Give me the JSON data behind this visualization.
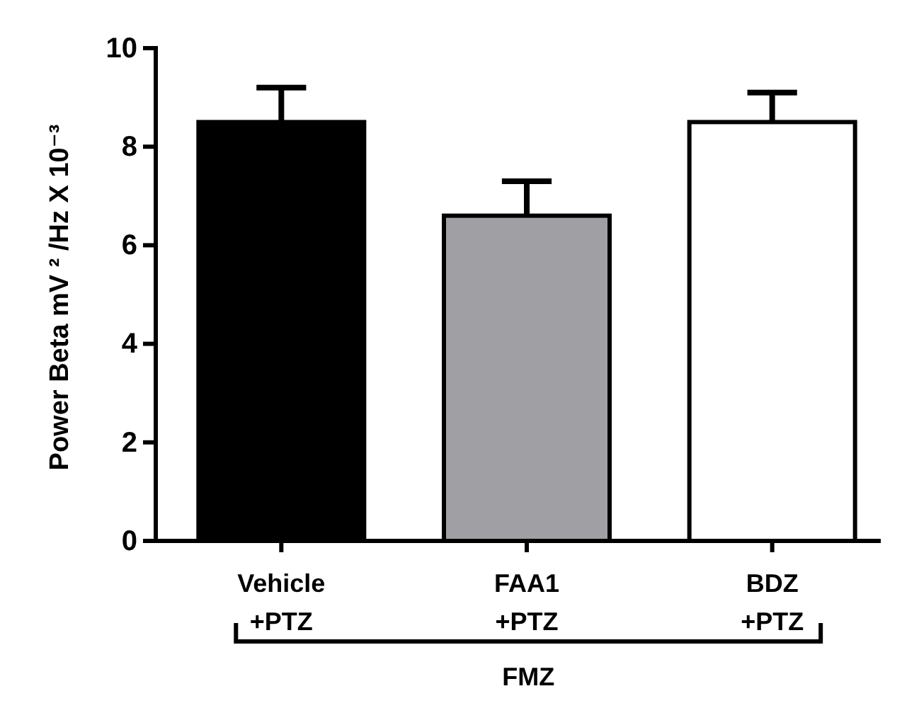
{
  "chart_data": {
    "type": "bar",
    "ylabel": "Power Beta mV ² /Hz X 10⁻³",
    "categories": [
      "Vehicle +PTZ",
      "FAA1 +PTZ",
      "BDZ +PTZ"
    ],
    "values": [
      8.5,
      6.6,
      8.5
    ],
    "colors": [
      "#000000",
      "#a0a0a4",
      "#ffffff"
    ],
    "errors": [
      [
        8.5,
        9.2
      ],
      [
        6.6,
        7.3
      ],
      [
        8.5,
        9.1
      ]
    ],
    "ylim": [
      0,
      10
    ],
    "yticks": [
      0,
      2,
      4,
      6,
      8,
      10
    ],
    "annotations": [
      "FMZ"
    ]
  }
}
